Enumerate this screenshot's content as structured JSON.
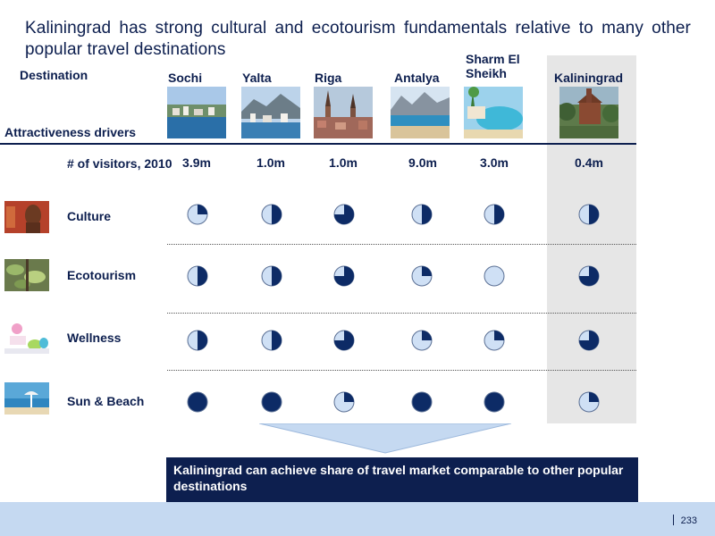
{
  "title": "Kaliningrad has strong cultural and ecotourism fundamentals relative to many other popular travel destinations",
  "header": {
    "destination_label": "Destination",
    "drivers_label": "Attractiveness drivers"
  },
  "destinations": [
    "Sochi",
    "Yalta",
    "Riga",
    "Antalya",
    "Sharm El Sheikh",
    "Kaliningrad"
  ],
  "visitors": {
    "label": "# of visitors, 2010",
    "values": [
      "3.9m",
      "1.0m",
      "1.0m",
      "9.0m",
      "3.0m",
      "0.4m"
    ]
  },
  "drivers": [
    {
      "label": "Culture",
      "icon": "buddha-statue-icon",
      "scores": [
        0.25,
        0.5,
        0.75,
        0.5,
        0.5,
        0.5
      ]
    },
    {
      "label": "Ecotourism",
      "icon": "forest-leaves-icon",
      "scores": [
        0.5,
        0.5,
        0.75,
        0.25,
        0,
        0.75
      ]
    },
    {
      "label": "Wellness",
      "icon": "spa-stones-icon",
      "scores": [
        0.5,
        0.5,
        0.75,
        0.25,
        0.25,
        0.75
      ]
    },
    {
      "label": "Sun & Beach",
      "icon": "beach-umbrella-icon",
      "scores": [
        1,
        1,
        0.25,
        1,
        1,
        0.25
      ]
    }
  ],
  "conclusion": "Kaliningrad can achieve share of travel market comparable to other popular destinations",
  "page_number": "233",
  "colors": {
    "navy": "#0d1f4f",
    "harvey_fill": "#0d2b66",
    "harvey_empty": "#cfe0f5",
    "highlight": "#e6e6e6",
    "footer": "#c5d9f1"
  }
}
